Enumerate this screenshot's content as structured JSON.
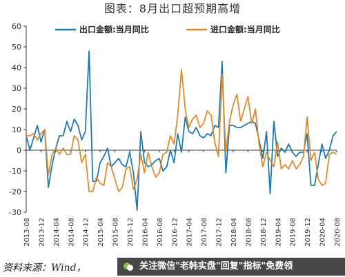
{
  "header": {
    "title": "图表：8月出口超预期高增"
  },
  "chart_data": {
    "type": "line",
    "title": "图表：8月出口超预期高增",
    "xlabel": "",
    "ylabel": "",
    "ylim": [
      -30,
      60
    ],
    "yticks": [
      -30,
      -20,
      -10,
      0,
      10,
      20,
      30,
      40,
      50,
      60
    ],
    "grid": false,
    "legend_position": "top",
    "x_tick_labels": [
      "2013-08",
      "2013-12",
      "2014-04",
      "2014-08",
      "2014-12",
      "2015-04",
      "2015-08",
      "2015-12",
      "2016-04",
      "2016-08",
      "2016-12",
      "2017-04",
      "2017-08",
      "2017-12",
      "2018-04",
      "2018-08",
      "2018-12",
      "2019-04",
      "2019-08",
      "2019-12",
      "2020-04",
      "2020-08"
    ],
    "x": [
      "2013-08",
      "2013-09",
      "2013-10",
      "2013-11",
      "2013-12",
      "2014-01",
      "2014-02",
      "2014-03",
      "2014-04",
      "2014-05",
      "2014-06",
      "2014-07",
      "2014-08",
      "2014-09",
      "2014-10",
      "2014-11",
      "2014-12",
      "2015-01",
      "2015-02",
      "2015-03",
      "2015-04",
      "2015-05",
      "2015-06",
      "2015-07",
      "2015-08",
      "2015-09",
      "2015-10",
      "2015-11",
      "2015-12",
      "2016-01",
      "2016-02",
      "2016-03",
      "2016-04",
      "2016-05",
      "2016-06",
      "2016-07",
      "2016-08",
      "2016-09",
      "2016-10",
      "2016-11",
      "2016-12",
      "2017-01",
      "2017-02",
      "2017-03",
      "2017-04",
      "2017-05",
      "2017-06",
      "2017-07",
      "2017-08",
      "2017-09",
      "2017-10",
      "2017-11",
      "2017-12",
      "2018-01",
      "2018-02",
      "2018-03",
      "2018-04",
      "2018-05",
      "2018-06",
      "2018-07",
      "2018-08",
      "2018-09",
      "2018-10",
      "2018-11",
      "2018-12",
      "2019-01",
      "2019-02",
      "2019-03",
      "2019-04",
      "2019-05",
      "2019-06",
      "2019-07",
      "2019-08",
      "2019-09",
      "2019-10",
      "2019-11",
      "2019-12",
      "2020-01",
      "2020-02",
      "2020-03",
      "2020-04",
      "2020-05",
      "2020-06",
      "2020-07",
      "2020-08"
    ],
    "series": [
      {
        "name": "出口金额:当月同比",
        "color": "#1f7ab3",
        "values": [
          7,
          0,
          6,
          12,
          4,
          10,
          -18,
          -7,
          1,
          7,
          7,
          14,
          9,
          15,
          12,
          5,
          9,
          48,
          -15,
          -15,
          -6,
          -3,
          1,
          -8,
          -6,
          -4,
          -7,
          -8,
          -1,
          -11,
          -29,
          9,
          -6,
          -8,
          -7,
          -5,
          -4,
          -10,
          -8,
          0,
          -6,
          8,
          -1,
          16,
          9,
          8,
          11,
          7,
          6,
          8,
          7,
          12,
          11,
          43,
          -11,
          12,
          12,
          11,
          11,
          12,
          13,
          14,
          13,
          5,
          -4,
          9,
          -21,
          14,
          -3,
          1,
          -1,
          3,
          -1,
          -3,
          -1,
          -1,
          8,
          -17,
          -17,
          -7,
          3,
          -4,
          0,
          7,
          9
        ]
      },
      {
        "name": "进口金额:当月同比",
        "color": "#e08a2e",
        "values": [
          7,
          7,
          8,
          5,
          8,
          10,
          -12,
          -2,
          1,
          -2,
          1,
          -2,
          -2,
          7,
          5,
          -6,
          -2,
          -20,
          -20,
          -13,
          -16,
          -17,
          -6,
          -8,
          -14,
          -20,
          -18,
          -9,
          -8,
          -19,
          -14,
          -2,
          -11,
          -1,
          -8,
          -13,
          -11,
          -2,
          -1,
          7,
          3,
          17,
          39,
          20,
          11,
          15,
          17,
          11,
          13,
          19,
          17,
          4,
          -3,
          37,
          -1,
          14,
          22,
          27,
          14,
          20,
          26,
          13,
          20,
          3,
          -8,
          -1,
          -5,
          -8,
          4,
          -9,
          -7,
          -9,
          -5,
          -9,
          -7,
          -3,
          16,
          -5,
          -1,
          -14,
          -17,
          -16,
          -2,
          -1,
          -2
        ]
      }
    ]
  },
  "footer": {
    "source": "资料来源：Wind，",
    "banner_text": "关注微信\"老韩实盘\"回复\"指标\"免费领"
  }
}
